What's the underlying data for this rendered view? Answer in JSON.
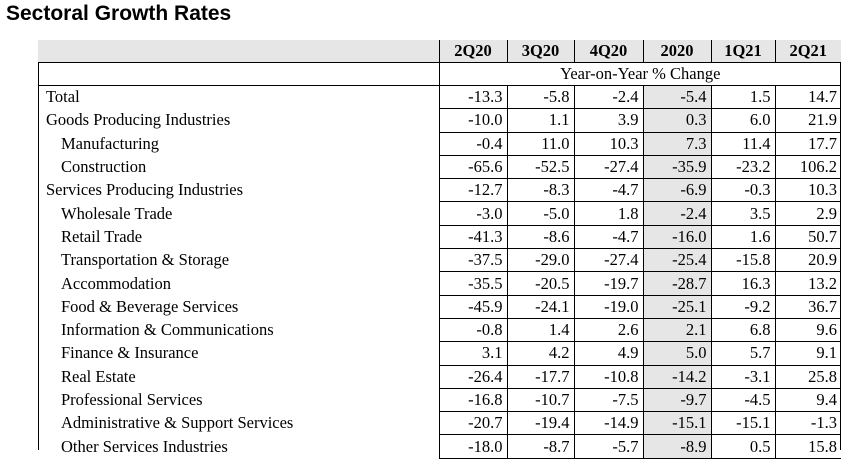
{
  "title": "Sectoral Growth Rates",
  "columns": [
    "2Q20",
    "3Q20",
    "4Q20",
    "2020",
    "1Q21",
    "2Q21"
  ],
  "subheader": "Year-on-Year % Change",
  "highlight_color": "#e6e6e6",
  "rows": [
    {
      "label": "Total",
      "indent": false,
      "values": [
        "-13.3",
        "-5.8",
        "-2.4",
        "-5.4",
        "1.5",
        "14.7"
      ]
    },
    {
      "label": "Goods Producing Industries",
      "indent": false,
      "values": [
        "-10.0",
        "1.1",
        "3.9",
        "0.3",
        "6.0",
        "21.9"
      ]
    },
    {
      "label": "Manufacturing",
      "indent": true,
      "values": [
        "-0.4",
        "11.0",
        "10.3",
        "7.3",
        "11.4",
        "17.7"
      ]
    },
    {
      "label": "Construction",
      "indent": true,
      "values": [
        "-65.6",
        "-52.5",
        "-27.4",
        "-35.9",
        "-23.2",
        "106.2"
      ]
    },
    {
      "label": "Services Producing Industries",
      "indent": false,
      "values": [
        "-12.7",
        "-8.3",
        "-4.7",
        "-6.9",
        "-0.3",
        "10.3"
      ]
    },
    {
      "label": "Wholesale Trade",
      "indent": true,
      "values": [
        "-3.0",
        "-5.0",
        "1.8",
        "-2.4",
        "3.5",
        "2.9"
      ]
    },
    {
      "label": "Retail Trade",
      "indent": true,
      "values": [
        "-41.3",
        "-8.6",
        "-4.7",
        "-16.0",
        "1.6",
        "50.7"
      ]
    },
    {
      "label": "Transportation & Storage",
      "indent": true,
      "values": [
        "-37.5",
        "-29.0",
        "-27.4",
        "-25.4",
        "-15.8",
        "20.9"
      ]
    },
    {
      "label": "Accommodation",
      "indent": true,
      "values": [
        "-35.5",
        "-20.5",
        "-19.7",
        "-28.7",
        "16.3",
        "13.2"
      ]
    },
    {
      "label": "Food & Beverage Services",
      "indent": true,
      "values": [
        "-45.9",
        "-24.1",
        "-19.0",
        "-25.1",
        "-9.2",
        "36.7"
      ]
    },
    {
      "label": "Information & Communications",
      "indent": true,
      "values": [
        "-0.8",
        "1.4",
        "2.6",
        "2.1",
        "6.8",
        "9.6"
      ]
    },
    {
      "label": "Finance & Insurance",
      "indent": true,
      "values": [
        "3.1",
        "4.2",
        "4.9",
        "5.0",
        "5.7",
        "9.1"
      ]
    },
    {
      "label": "Real Estate",
      "indent": true,
      "values": [
        "-26.4",
        "-17.7",
        "-10.8",
        "-14.2",
        "-3.1",
        "25.8"
      ]
    },
    {
      "label": "Professional Services",
      "indent": true,
      "values": [
        "-16.8",
        "-10.7",
        "-7.5",
        "-9.7",
        "-4.5",
        "9.4"
      ]
    },
    {
      "label": "Administrative & Support Services",
      "indent": true,
      "values": [
        "-20.7",
        "-19.4",
        "-14.9",
        "-15.1",
        "-15.1",
        "-1.3"
      ]
    },
    {
      "label": "Other Services Industries",
      "indent": true,
      "values": [
        "-18.0",
        "-8.7",
        "-5.7",
        "-8.9",
        "0.5",
        "15.8"
      ]
    }
  ]
}
